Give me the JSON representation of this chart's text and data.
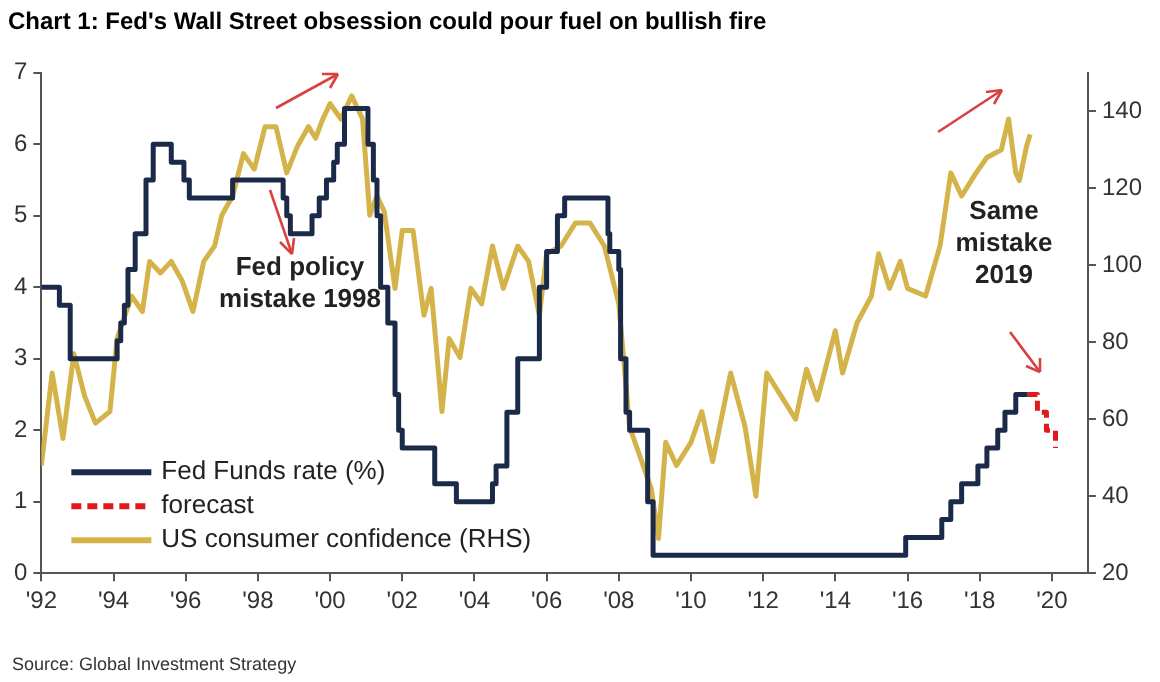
{
  "chart_data": {
    "type": "step",
    "title": "Chart 1: Fed's Wall Street obsession could pour fuel on bullish fire",
    "xlim": [
      1992,
      2021
    ],
    "xticks": [
      {
        "value": 1992,
        "label": "'92"
      },
      {
        "value": 1994,
        "label": "'94"
      },
      {
        "value": 1996,
        "label": "'96"
      },
      {
        "value": 1998,
        "label": "'98"
      },
      {
        "value": 2000,
        "label": "'00"
      },
      {
        "value": 2002,
        "label": "'02"
      },
      {
        "value": 2004,
        "label": "'04"
      },
      {
        "value": 2006,
        "label": "'06"
      },
      {
        "value": 2008,
        "label": "'08"
      },
      {
        "value": 2010,
        "label": "'10"
      },
      {
        "value": 2012,
        "label": "'12"
      },
      {
        "value": 2014,
        "label": "'14"
      },
      {
        "value": 2016,
        "label": "'16"
      },
      {
        "value": 2018,
        "label": "'18"
      },
      {
        "value": 2020,
        "label": "'20"
      }
    ],
    "ylim": [
      0,
      7
    ],
    "yticks": [
      0,
      1,
      2,
      3,
      4,
      5,
      6,
      7
    ],
    "y2lim": [
      20,
      150
    ],
    "y2ticks": [
      20,
      40,
      60,
      80,
      100,
      120,
      140
    ],
    "grid": false,
    "legend": "bottom left",
    "series": [
      {
        "name": "Fed Funds rate (%)",
        "type": "step",
        "color": "#1c2a4a",
        "line_style": "solid",
        "x": [
          1992,
          1992.5,
          1992.8,
          1994.1,
          1994.2,
          1994.3,
          1994.4,
          1994.6,
          1994.9,
          1995.1,
          1995.6,
          1995.95,
          1996.1,
          1997.3,
          1998.7,
          1998.8,
          1998.9,
          1999.5,
          1999.7,
          1999.9,
          2000.1,
          2000.2,
          2000.4,
          2001.05,
          2001.2,
          2001.3,
          2001.4,
          2001.6,
          2001.8,
          2001.9,
          2002.0,
          2002.9,
          2003.5,
          2004.5,
          2004.6,
          2004.9,
          2005.2,
          2005.8,
          2006.0,
          2006.3,
          2006.5,
          2007.7,
          2007.75,
          2008.0,
          2008.05,
          2008.2,
          2008.3,
          2008.8,
          2008.95,
          2015.95,
          2016.95,
          2017.2,
          2017.5,
          2017.95,
          2018.2,
          2018.5,
          2018.7,
          2019.0,
          2019.33
        ],
        "values": [
          4.0,
          3.75,
          3.0,
          3.25,
          3.5,
          3.75,
          4.25,
          4.75,
          5.5,
          6.0,
          5.75,
          5.5,
          5.25,
          5.5,
          5.25,
          5.0,
          4.75,
          5.0,
          5.25,
          5.5,
          5.75,
          6.0,
          6.5,
          6.0,
          5.5,
          5.0,
          4.0,
          3.5,
          2.5,
          2.0,
          1.75,
          1.25,
          1.0,
          1.25,
          1.5,
          2.25,
          3.0,
          4.0,
          4.5,
          5.0,
          5.25,
          4.75,
          4.5,
          4.25,
          3.0,
          2.25,
          2.0,
          1.0,
          0.25,
          0.5,
          0.75,
          1.0,
          1.25,
          1.5,
          1.75,
          2.0,
          2.25,
          2.5,
          2.5
        ]
      },
      {
        "name": "forecast",
        "type": "step",
        "color": "#e0191f",
        "line_style": "dashed",
        "x": [
          2019.33,
          2019.6,
          2019.85,
          2020.1
        ],
        "values": [
          2.5,
          2.25,
          2.0,
          1.75
        ]
      },
      {
        "name": "US consumer confidence (RHS)",
        "type": "line",
        "axis": "y2",
        "color": "#d4b44a",
        "line_style": "solid",
        "x": [
          1992.0,
          1992.3,
          1992.6,
          1992.9,
          1993.2,
          1993.5,
          1993.9,
          1994.1,
          1994.5,
          1994.8,
          1995.0,
          1995.3,
          1995.6,
          1995.9,
          1996.2,
          1996.5,
          1996.8,
          1997.0,
          1997.3,
          1997.6,
          1997.9,
          1998.2,
          1998.5,
          1998.8,
          1999.1,
          1999.4,
          1999.6,
          1999.8,
          2000.0,
          2000.3,
          2000.6,
          2000.9,
          2001.1,
          2001.3,
          2001.5,
          2001.8,
          2002.0,
          2002.3,
          2002.6,
          2002.8,
          2003.1,
          2003.3,
          2003.6,
          2003.9,
          2004.2,
          2004.5,
          2004.8,
          2005.2,
          2005.5,
          2005.8,
          2006.0,
          2006.4,
          2006.8,
          2007.2,
          2007.6,
          2008.0,
          2008.3,
          2008.6,
          2008.9,
          2009.1,
          2009.3,
          2009.6,
          2010.0,
          2010.3,
          2010.6,
          2011.1,
          2011.5,
          2011.8,
          2012.1,
          2012.5,
          2012.9,
          2013.2,
          2013.5,
          2014.0,
          2014.2,
          2014.6,
          2015.0,
          2015.2,
          2015.5,
          2015.8,
          2016.0,
          2016.5,
          2016.9,
          2017.2,
          2017.5,
          2017.9,
          2018.2,
          2018.6,
          2018.8,
          2019.0,
          2019.1,
          2019.3,
          2019.4
        ],
        "values": [
          48,
          72,
          55,
          77,
          66,
          59,
          62,
          81,
          92,
          88,
          101,
          98,
          101,
          96,
          88,
          101,
          105,
          113,
          118,
          129,
          125,
          136,
          136,
          124,
          131,
          136,
          133,
          138,
          142,
          138,
          144,
          138,
          113,
          118,
          114,
          94,
          109,
          109,
          87,
          94,
          62,
          81,
          76,
          94,
          90,
          105,
          94,
          105,
          101,
          87,
          103,
          105,
          111,
          111,
          105,
          90,
          58,
          50,
          42,
          29,
          54,
          48,
          54,
          62,
          49,
          72,
          58,
          40,
          72,
          66,
          60,
          73,
          65,
          83,
          72,
          85,
          92,
          103,
          94,
          101,
          94,
          92,
          105,
          124,
          118,
          124,
          128,
          130,
          138,
          124,
          122,
          131,
          134
        ]
      }
    ],
    "annotations": [
      "Fed policy\nmistake 1998",
      "Same\nmistake\n2019",
      "Source: Global Investment Strategy"
    ]
  }
}
